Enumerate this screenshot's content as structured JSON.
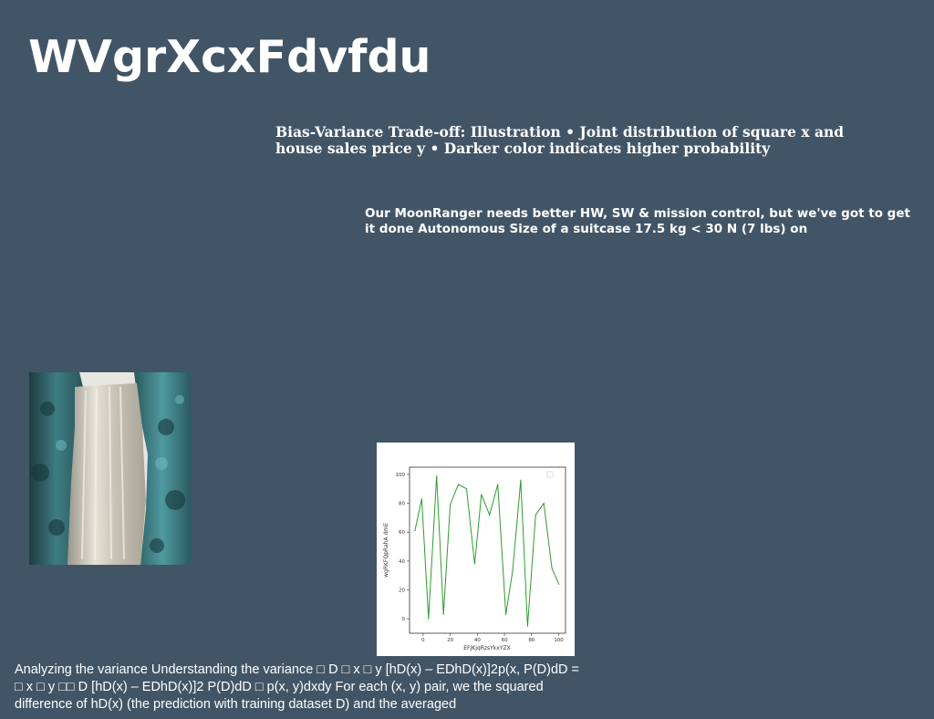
{
  "title": "WVgrXcxFdvfdu",
  "subtitle": "Bias-Variance Trade-off: Illustration • Joint distribution of square x and house sales price y • Darker color indicates higher probability",
  "body_text": "Our MoonRanger needs better HW, SW & mission control, but we've got to get it done Autonomous Size of a suitcase 17.5 kg < 30 N (7 lbs) on",
  "footer_text": "Analyzing the variance Understanding the variance □ D □ x □ y [hD(x) – EDhD(x)]2p(x, P(D)dD = □ x □ y □□ D [hD(x) – EDhD(x)]2 P(D)dD □ p(x, y)dxdy For each (x, y) pair, we the squared difference of hD(x) (the prediction with training dataset D) and the averaged",
  "image": {
    "icon": "waterfall-photo"
  },
  "chart_data": {
    "type": "line",
    "xlabel": "EFJKjqRzsYkxYZX",
    "ylabel": "wgRKFQpRahA dmE",
    "xlim": [
      -10,
      105
    ],
    "ylim": [
      -10,
      105
    ],
    "xticks": [
      "0",
      "20",
      "40",
      "60",
      "80",
      "100"
    ],
    "yticks": [
      "0",
      "20",
      "40",
      "60",
      "80",
      "100"
    ],
    "color": "#2e9a2e",
    "x": [
      -6,
      -1,
      4,
      10,
      15,
      20,
      26,
      32,
      38,
      43,
      49,
      55,
      61,
      66,
      72,
      77,
      83,
      89,
      95,
      100
    ],
    "y": [
      61,
      83,
      0,
      99,
      3,
      79,
      93,
      90,
      38,
      86,
      72,
      93,
      3,
      33,
      96,
      -5,
      72,
      80,
      35,
      24
    ]
  }
}
